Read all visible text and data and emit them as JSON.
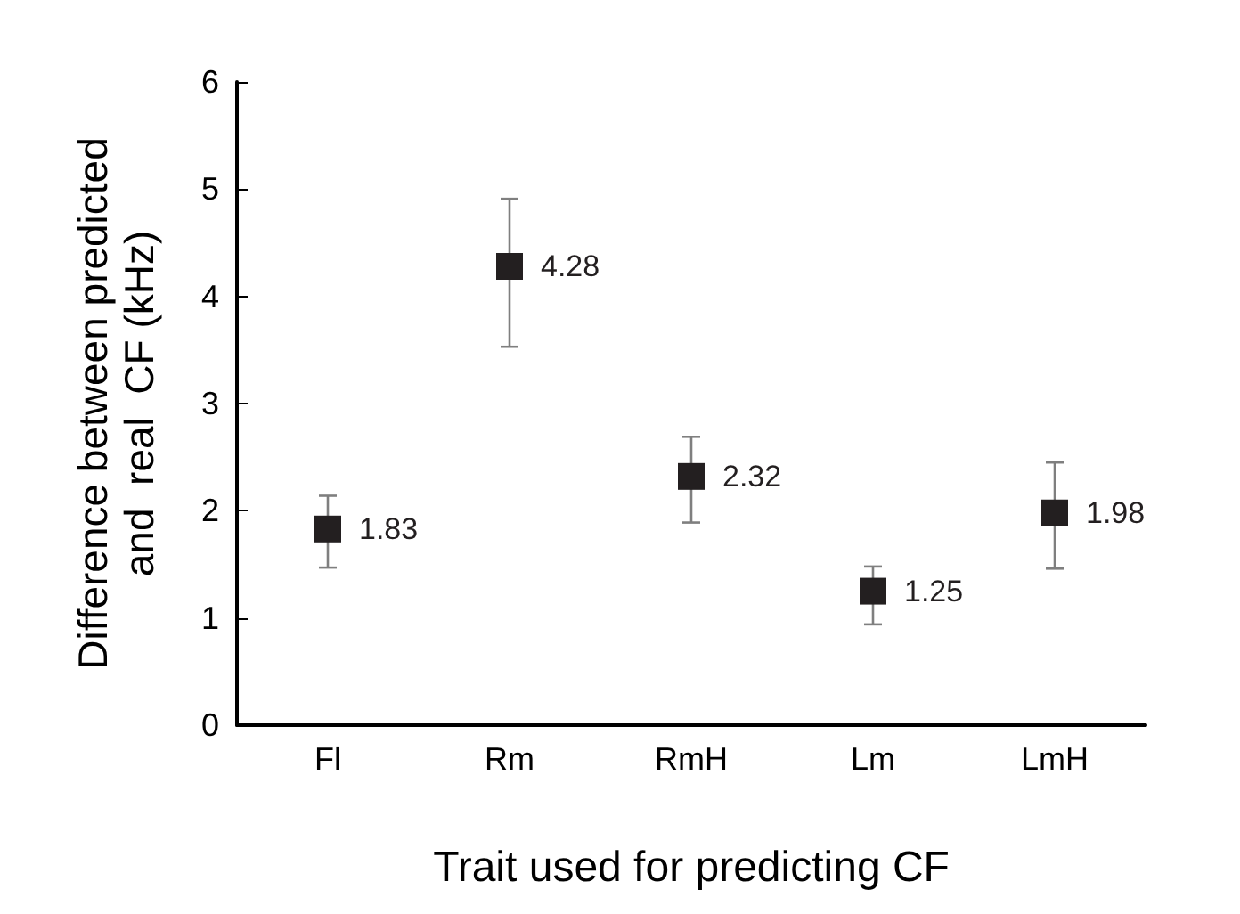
{
  "chart_data": {
    "type": "scatter",
    "xlabel": "Trait used for predicting CF",
    "ylabel": "Difference between predicted\nand  real  CF (kHz)",
    "categories": [
      "Fl",
      "Rm",
      "RmH",
      "Lm",
      "LmH"
    ],
    "values": [
      1.83,
      4.28,
      2.32,
      1.25,
      1.98
    ],
    "errors": [
      [
        1.47,
        2.14
      ],
      [
        3.53,
        4.91
      ],
      [
        1.89,
        2.69
      ],
      [
        0.94,
        1.48
      ],
      [
        1.46,
        2.45
      ]
    ],
    "color": "#231f20",
    "marker": "square",
    "data_labels": true,
    "ylim": [
      0,
      6
    ],
    "yticks": [
      0,
      1,
      2,
      3,
      4,
      5,
      6
    ],
    "grid": false
  }
}
